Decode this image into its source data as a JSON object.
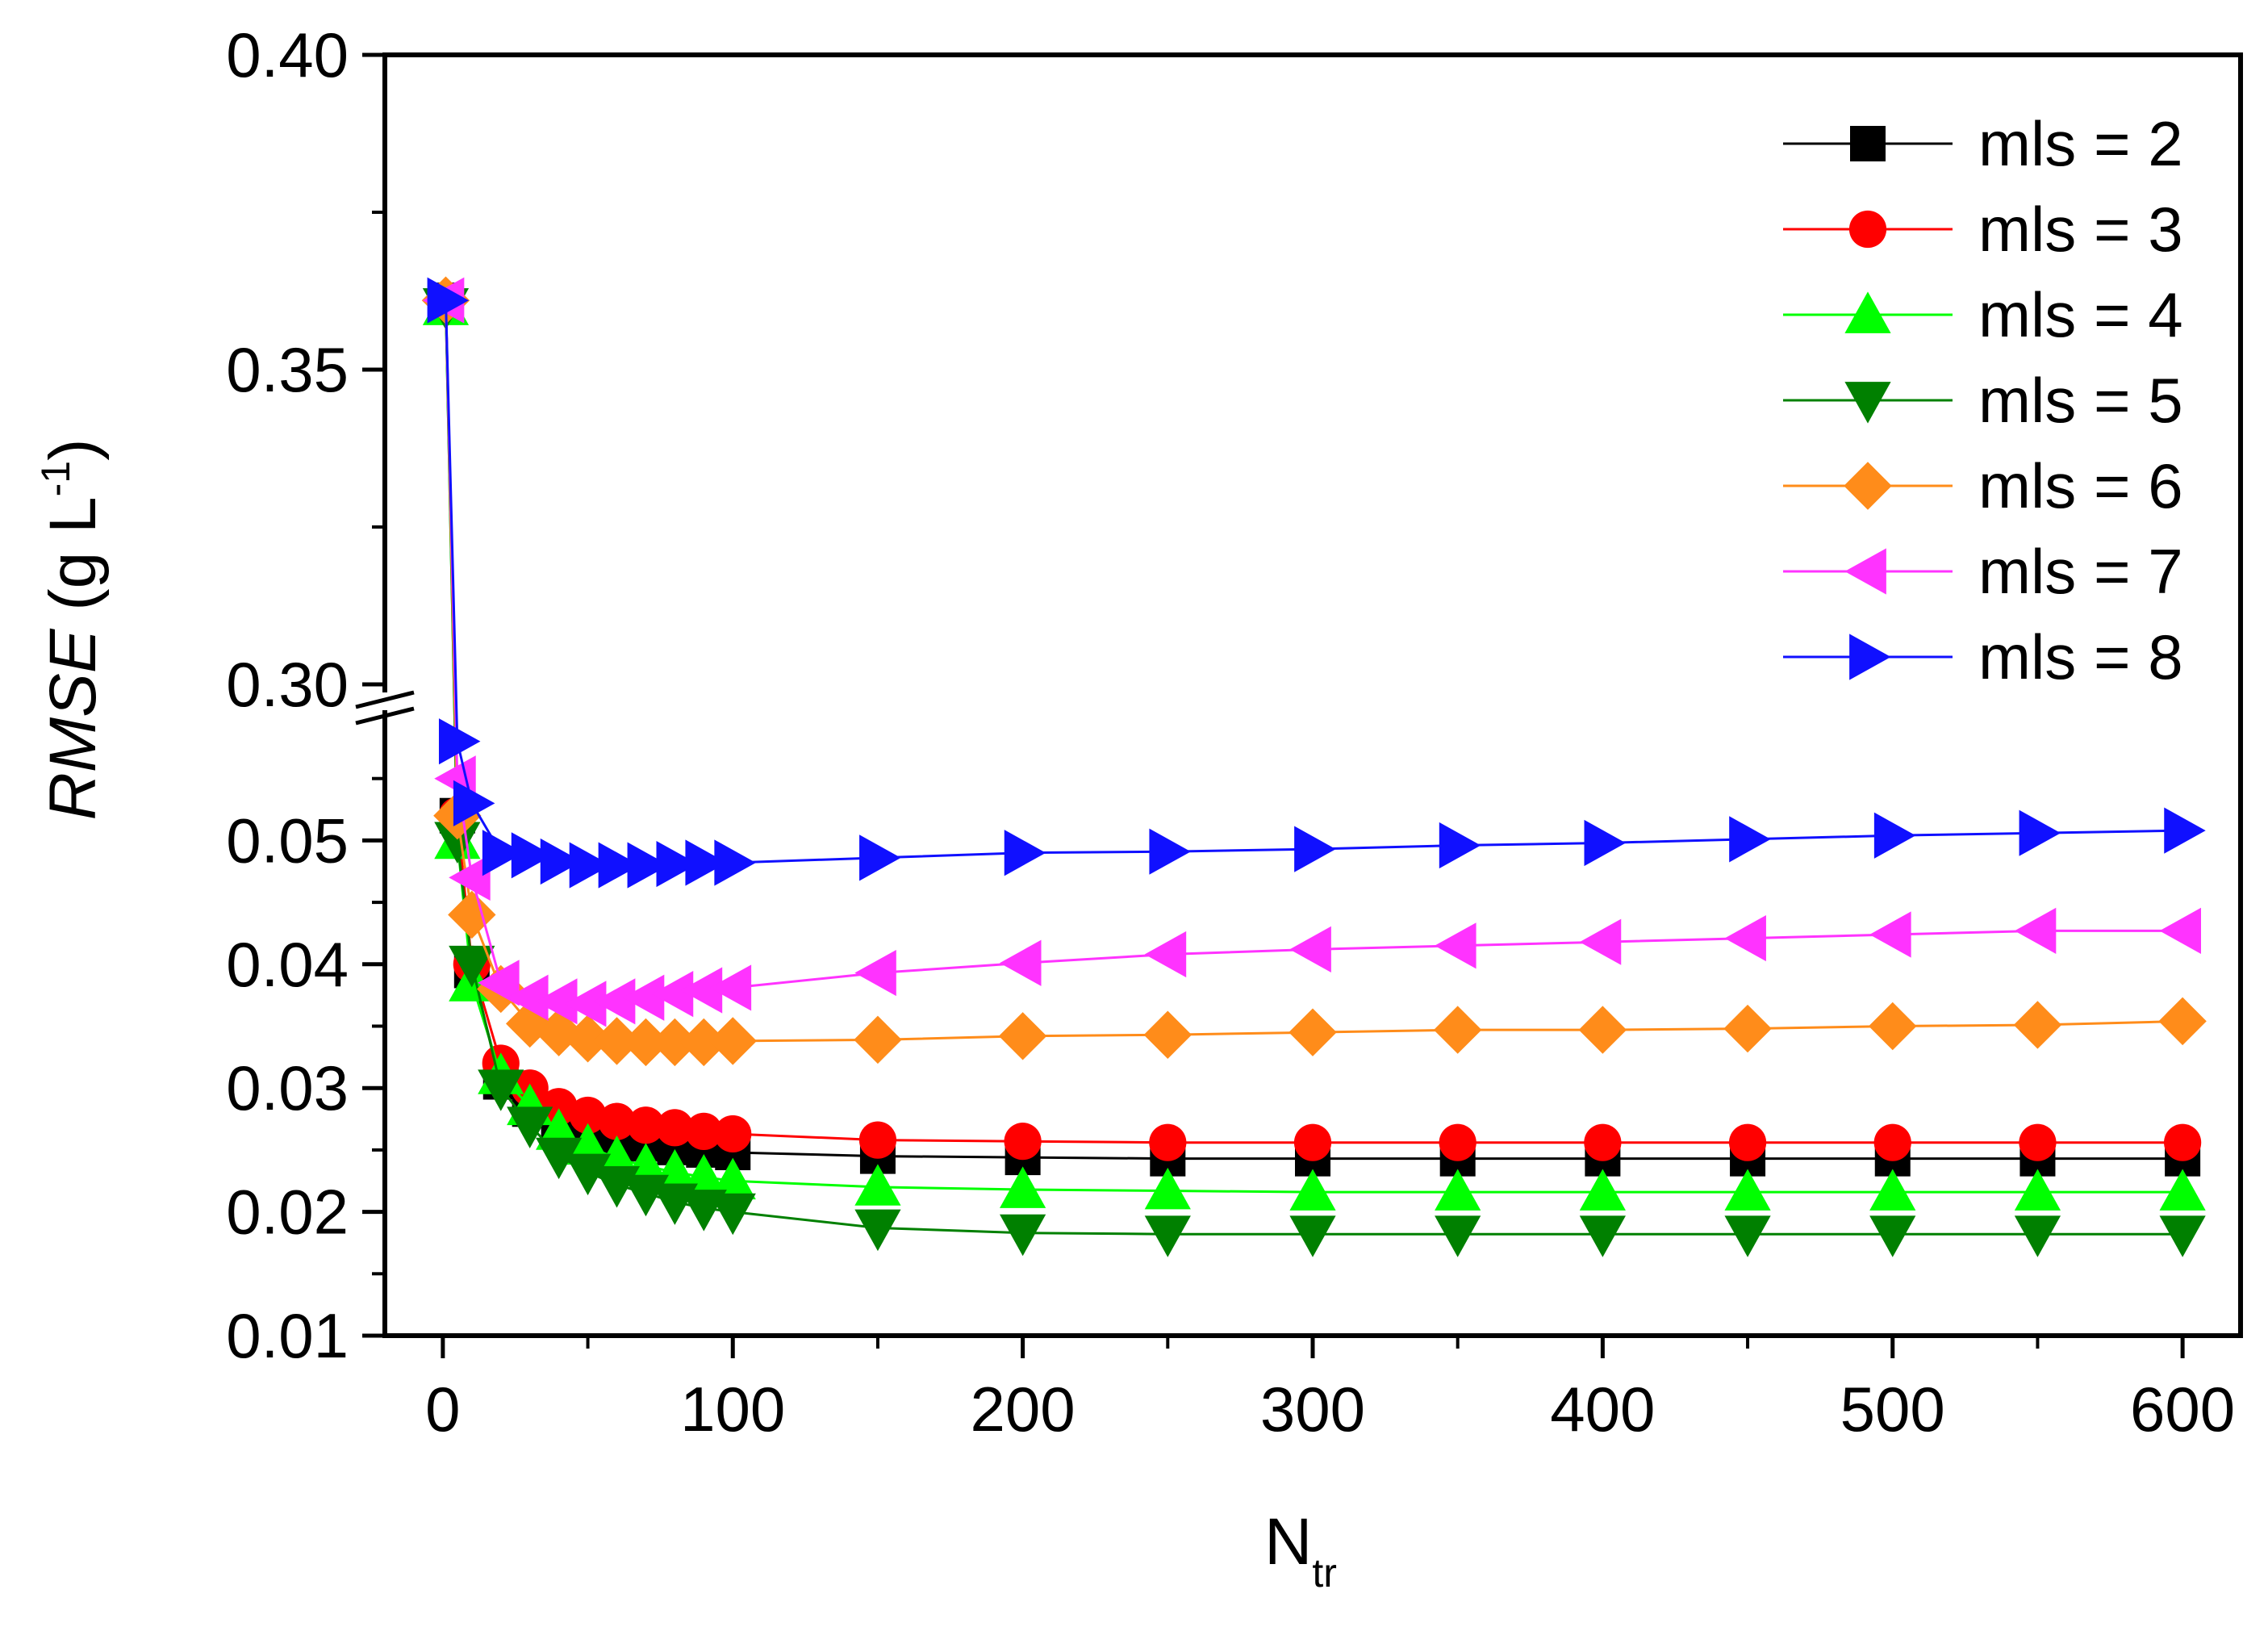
{
  "chart_data": {
    "type": "line",
    "title": "",
    "xlabel": "N",
    "xlabel_sub": "tr",
    "ylabel_italic": "RMSE",
    "ylabel_rest": " (g L",
    "ylabel_sup": "-1",
    "ylabel_close": ")",
    "xlim": [
      -20,
      620
    ],
    "x_ticks": [
      0,
      100,
      200,
      300,
      400,
      500,
      600
    ],
    "x_tick_labels": [
      "0",
      "100",
      "200",
      "300",
      "400",
      "500",
      "600"
    ],
    "y_lower_range": [
      0.01,
      0.06
    ],
    "y_upper_range": [
      0.3,
      0.4
    ],
    "y_ticks": [
      0.01,
      0.02,
      0.03,
      0.04,
      0.05,
      0.3,
      0.35,
      0.4
    ],
    "y_tick_labels": [
      "0.01",
      "0.02",
      "0.03",
      "0.04",
      "0.05",
      "0.30",
      "0.35",
      "0.40"
    ],
    "axis_break": true,
    "legend_position": "top-right",
    "x": [
      1,
      5,
      10,
      20,
      30,
      40,
      50,
      60,
      70,
      80,
      90,
      100,
      150,
      200,
      250,
      300,
      350,
      400,
      450,
      500,
      550,
      600
    ],
    "series": [
      {
        "name": "mls = 2",
        "color": "#000000",
        "marker": "square",
        "values": [
          0.361,
          0.052,
          0.0395,
          0.0305,
          0.0283,
          0.0268,
          0.0262,
          0.0258,
          0.0255,
          0.0252,
          0.025,
          0.0248,
          0.0245,
          0.0244,
          0.0243,
          0.0243,
          0.0243,
          0.0243,
          0.0243,
          0.0243,
          0.0243,
          0.0243
        ]
      },
      {
        "name": "mls = 3",
        "color": "#ff0000",
        "marker": "circle",
        "values": [
          0.361,
          0.052,
          0.04,
          0.032,
          0.03,
          0.0285,
          0.0278,
          0.0273,
          0.027,
          0.0268,
          0.0265,
          0.0263,
          0.0258,
          0.0257,
          0.0256,
          0.0256,
          0.0256,
          0.0256,
          0.0256,
          0.0256,
          0.0256,
          0.0256
        ]
      },
      {
        "name": "mls = 4",
        "color": "#00ff00",
        "marker": "triangle-up",
        "values": [
          0.36,
          0.05,
          0.0385,
          0.031,
          0.0285,
          0.0265,
          0.0253,
          0.0243,
          0.0237,
          0.0232,
          0.0228,
          0.0225,
          0.022,
          0.0218,
          0.0217,
          0.0216,
          0.0216,
          0.0216,
          0.0216,
          0.0216,
          0.0216,
          0.0216
        ]
      },
      {
        "name": "mls = 5",
        "color": "#008000",
        "marker": "triangle-down",
        "values": [
          0.36,
          0.05,
          0.04,
          0.03,
          0.027,
          0.0245,
          0.0232,
          0.0222,
          0.0215,
          0.0208,
          0.0203,
          0.02,
          0.0187,
          0.0183,
          0.0182,
          0.0182,
          0.0182,
          0.0182,
          0.0182,
          0.0182,
          0.0182,
          0.0182
        ]
      },
      {
        "name": "mls = 6",
        "color": "#ff8c1a",
        "marker": "diamond",
        "values": [
          0.361,
          0.052,
          0.044,
          0.038,
          0.0352,
          0.0345,
          0.034,
          0.0338,
          0.0337,
          0.0337,
          0.0337,
          0.0338,
          0.0339,
          0.0342,
          0.0343,
          0.0345,
          0.0347,
          0.0347,
          0.0348,
          0.035,
          0.0351,
          0.0354
        ]
      },
      {
        "name": "mls = 7",
        "color": "#ff33ff",
        "marker": "triangle-left",
        "values": [
          0.361,
          0.055,
          0.047,
          0.0385,
          0.0373,
          0.037,
          0.0368,
          0.037,
          0.0373,
          0.0376,
          0.0379,
          0.0381,
          0.0393,
          0.0401,
          0.0408,
          0.0412,
          0.0415,
          0.0418,
          0.0421,
          0.0424,
          0.0427,
          0.0427
        ]
      },
      {
        "name": "mls = 8",
        "color": "#1010ff",
        "marker": "triangle-right",
        "values": [
          0.361,
          0.058,
          0.053,
          0.049,
          0.0488,
          0.0483,
          0.048,
          0.048,
          0.048,
          0.0481,
          0.0482,
          0.0482,
          0.0486,
          0.049,
          0.0491,
          0.0493,
          0.0496,
          0.0498,
          0.0501,
          0.0504,
          0.0506,
          0.0508
        ]
      }
    ]
  }
}
